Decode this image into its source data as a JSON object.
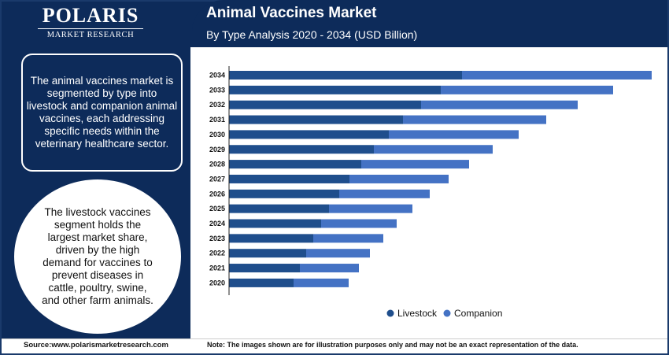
{
  "brand": {
    "logo_main": "POLARIS",
    "logo_sub": "MARKET RESEARCH"
  },
  "header": {
    "title": "Animal Vaccines Market",
    "subtitle": "By Type Analysis 2020 - 2034 (USD Billion)"
  },
  "side": {
    "box_text": "The animal vaccines market is segmented by type into livestock and companion animal vaccines, each addressing specific needs within the veterinary healthcare sector.",
    "circle_text": "The livestock vaccines segment holds the largest market share, driven by the high demand for vaccines to prevent diseases in cattle, poultry, swine, and other farm animals."
  },
  "footer": {
    "source": "Source:www.polarismarketresearch.com",
    "note": "Note: The images shown are for illustration purposes only and may not be an exact representation of the data."
  },
  "colors": {
    "livestock": "#1f4e8c",
    "companion": "#4472c4",
    "header_bg": "#0d2b5a"
  },
  "chart_data": {
    "type": "bar",
    "orientation": "horizontal",
    "stacked": true,
    "categories": [
      "2034",
      "2033",
      "2032",
      "2031",
      "2030",
      "2029",
      "2028",
      "2027",
      "2026",
      "2025",
      "2024",
      "2023",
      "2022",
      "2021",
      "2020"
    ],
    "series": [
      {
        "name": "Livestock",
        "color": "#1f4e8c",
        "values": [
          2.96,
          2.69,
          2.44,
          2.21,
          2.03,
          1.84,
          1.68,
          1.53,
          1.4,
          1.27,
          1.17,
          1.07,
          0.98,
          0.9,
          0.82
        ]
      },
      {
        "name": "Companion",
        "color": "#4472c4",
        "values": [
          2.41,
          2.19,
          1.99,
          1.82,
          1.65,
          1.51,
          1.37,
          1.26,
          1.15,
          1.06,
          0.96,
          0.89,
          0.81,
          0.75,
          0.7
        ]
      }
    ],
    "xlim": [
      0,
      5.37
    ],
    "legend_position": "bottom",
    "grid": false
  }
}
